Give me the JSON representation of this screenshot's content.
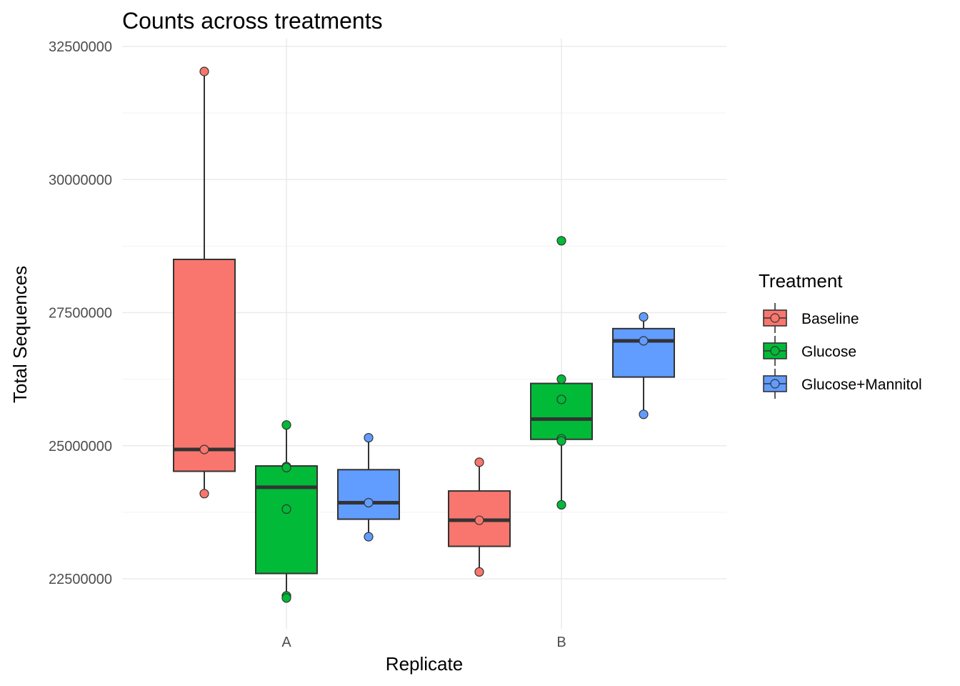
{
  "chart_data": {
    "type": "box",
    "title": "Counts across treatments",
    "xlabel": "Replicate",
    "ylabel": "Total Sequences",
    "categories": [
      "A",
      "B"
    ],
    "ylim": [
      22100000,
      32500000
    ],
    "y_ticks": [
      22500000,
      25000000,
      27500000,
      30000000,
      32500000
    ],
    "y_tick_labels": [
      "22500000",
      "25000000",
      "27500000",
      "30000000",
      "32500000"
    ],
    "grid": true,
    "legend": {
      "title": "Treatment",
      "position": "right",
      "entries": [
        "Baseline",
        "Glucose",
        "Glucose+Mannitol"
      ]
    },
    "series": [
      {
        "name": "Baseline",
        "color": "#F8766D",
        "boxes": [
          {
            "category": "A",
            "whisker_low": 24100000,
            "q1": 24520000,
            "median": 24930000,
            "q3": 28500000,
            "whisker_high": 32020000,
            "points": [
              32030000,
              24930000,
              24100000
            ]
          },
          {
            "category": "B",
            "whisker_low": 22630000,
            "q1": 23110000,
            "median": 23600000,
            "q3": 24150000,
            "whisker_high": 24700000,
            "points": [
              24690000,
              23600000,
              22630000
            ]
          }
        ]
      },
      {
        "name": "Glucose",
        "color": "#00BA38",
        "boxes": [
          {
            "category": "A",
            "whisker_low": 22130000,
            "q1": 22600000,
            "median": 24220000,
            "q3": 24620000,
            "whisker_high": 25400000,
            "points": [
              25390000,
              24610000,
              24590000,
              23810000,
              22180000,
              22140000
            ]
          },
          {
            "category": "B",
            "whisker_low": 23880000,
            "q1": 25120000,
            "median": 25500000,
            "q3": 26170000,
            "whisker_high": 26240000,
            "points": [
              28850000,
              26250000,
              25870000,
              25130000,
              25090000,
              23890000
            ]
          }
        ]
      },
      {
        "name": "Glucose+Mannitol",
        "color": "#619CFF",
        "boxes": [
          {
            "category": "A",
            "whisker_low": 23300000,
            "q1": 23620000,
            "median": 23930000,
            "q3": 24550000,
            "whisker_high": 25160000,
            "points": [
              25150000,
              23930000,
              23290000
            ]
          },
          {
            "category": "B",
            "whisker_low": 25580000,
            "q1": 26290000,
            "median": 26970000,
            "q3": 27200000,
            "whisker_high": 27420000,
            "points": [
              27420000,
              26970000,
              25590000
            ]
          }
        ]
      }
    ]
  }
}
